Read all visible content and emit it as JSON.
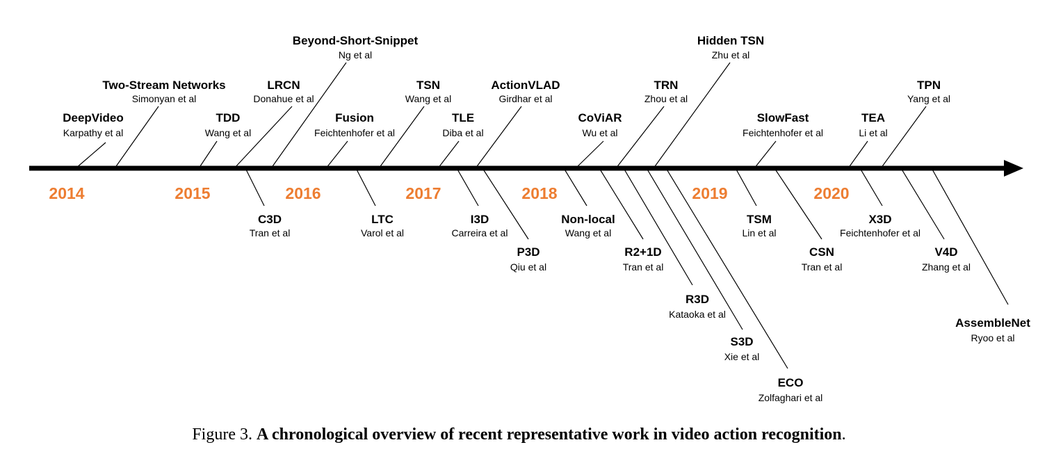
{
  "colors": {
    "axis": "#000000",
    "year": "#ED7D31"
  },
  "years": [
    "2014",
    "2015",
    "2016",
    "2017",
    "2018",
    "2019",
    "2020"
  ],
  "above": [
    {
      "name": "DeepVideo",
      "author": "Karpathy et al"
    },
    {
      "name": "Two-Stream Networks",
      "author": "Simonyan et al"
    },
    {
      "name": "TDD",
      "author": "Wang et al"
    },
    {
      "name": "LRCN",
      "author": "Donahue et al"
    },
    {
      "name": "Beyond-Short-Snippet",
      "author": "Ng et al"
    },
    {
      "name": "Fusion",
      "author": "Feichtenhofer et al"
    },
    {
      "name": "TSN",
      "author": "Wang et al"
    },
    {
      "name": "TLE",
      "author": "Diba et al"
    },
    {
      "name": "ActionVLAD",
      "author": "Girdhar et al"
    },
    {
      "name": "CoViAR",
      "author": "Wu et al"
    },
    {
      "name": "TRN",
      "author": "Zhou et al"
    },
    {
      "name": "Hidden TSN",
      "author": "Zhu et al"
    },
    {
      "name": "SlowFast",
      "author": "Feichtenhofer et al"
    },
    {
      "name": "TEA",
      "author": "Li et al"
    },
    {
      "name": "TPN",
      "author": "Yang et al"
    }
  ],
  "below": [
    {
      "name": "C3D",
      "author": "Tran et al"
    },
    {
      "name": "LTC",
      "author": "Varol et al"
    },
    {
      "name": "I3D",
      "author": "Carreira et al"
    },
    {
      "name": "P3D",
      "author": "Qiu et al"
    },
    {
      "name": "Non-local",
      "author": "Wang et al"
    },
    {
      "name": "R2+1D",
      "author": "Tran et al"
    },
    {
      "name": "R3D",
      "author": "Kataoka et al"
    },
    {
      "name": "S3D",
      "author": "Xie et al"
    },
    {
      "name": "ECO",
      "author": "Zolfaghari et al"
    },
    {
      "name": "TSM",
      "author": "Lin et al"
    },
    {
      "name": "CSN",
      "author": "Tran et al"
    },
    {
      "name": "X3D",
      "author": "Feichtenhofer et al"
    },
    {
      "name": "V4D",
      "author": "Zhang et al"
    },
    {
      "name": "AssembleNet",
      "author": "Ryoo et al"
    }
  ],
  "caption": {
    "prefix": "Figure 3. ",
    "title": "A chronological overview of recent representative work in video action recognition",
    "suffix": "."
  }
}
